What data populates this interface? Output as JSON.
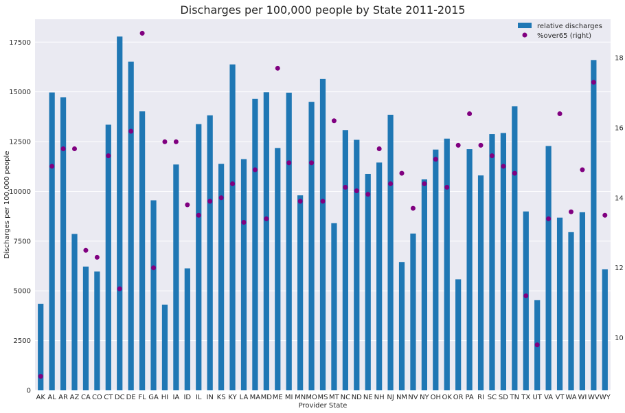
{
  "chart_data": {
    "type": "bar",
    "title": "Discharges per 100,000 people by State 2011-2015",
    "xlabel": "Provider State",
    "ylabel": "Discharges per 100,000 people",
    "y2label": "",
    "categories": [
      "AK",
      "AL",
      "AR",
      "AZ",
      "CA",
      "CO",
      "CT",
      "DC",
      "DE",
      "FL",
      "GA",
      "HI",
      "IA",
      "ID",
      "IL",
      "IN",
      "KS",
      "KY",
      "LA",
      "MA",
      "MD",
      "ME",
      "MI",
      "MN",
      "MO",
      "MS",
      "MT",
      "NC",
      "ND",
      "NE",
      "NH",
      "NJ",
      "NM",
      "NV",
      "NY",
      "OH",
      "OK",
      "OR",
      "PA",
      "RI",
      "SC",
      "SD",
      "TN",
      "TX",
      "UT",
      "VA",
      "VT",
      "WA",
      "WI",
      "WV",
      "WY"
    ],
    "series": [
      {
        "name": "relative discharges",
        "kind": "bar",
        "axis": "left",
        "color": "#1f77b4",
        "values": [
          4350,
          14970,
          14730,
          7860,
          6220,
          5970,
          13350,
          17780,
          16520,
          14020,
          9550,
          4300,
          11350,
          6130,
          13380,
          13820,
          11380,
          16380,
          11620,
          14650,
          14980,
          12180,
          14960,
          9800,
          14500,
          15650,
          8400,
          13080,
          12590,
          10880,
          11450,
          13850,
          6450,
          7880,
          10600,
          12100,
          12650,
          5580,
          12120,
          10800,
          12880,
          12930,
          14280,
          8990,
          4530,
          12280,
          8680,
          7950,
          8950,
          16600,
          6080
        ]
      },
      {
        "name": "%over65 (right)",
        "kind": "scatter",
        "axis": "right",
        "color": "#800080",
        "values": [
          8.9,
          14.9,
          15.4,
          15.4,
          12.5,
          12.3,
          15.2,
          11.4,
          15.9,
          18.7,
          12.0,
          15.6,
          15.6,
          13.8,
          13.5,
          13.9,
          14.0,
          14.4,
          13.3,
          14.8,
          13.4,
          17.7,
          15.0,
          13.9,
          15.0,
          13.9,
          16.2,
          14.3,
          14.2,
          14.1,
          15.4,
          14.4,
          14.7,
          13.7,
          14.4,
          15.1,
          14.3,
          15.5,
          16.4,
          15.5,
          15.2,
          14.9,
          14.7,
          11.2,
          9.8,
          13.4,
          16.4,
          13.6,
          14.8,
          17.3,
          13.5
        ]
      }
    ],
    "ylim": [
      0,
      18650
    ],
    "yticks": [
      0,
      2500,
      5000,
      7500,
      10000,
      12500,
      15000,
      17500
    ],
    "y2lim": [
      8.5,
      19.1
    ],
    "y2ticks": [
      10,
      12,
      14,
      16,
      18
    ],
    "grid": true,
    "legend_position": "top-right"
  }
}
